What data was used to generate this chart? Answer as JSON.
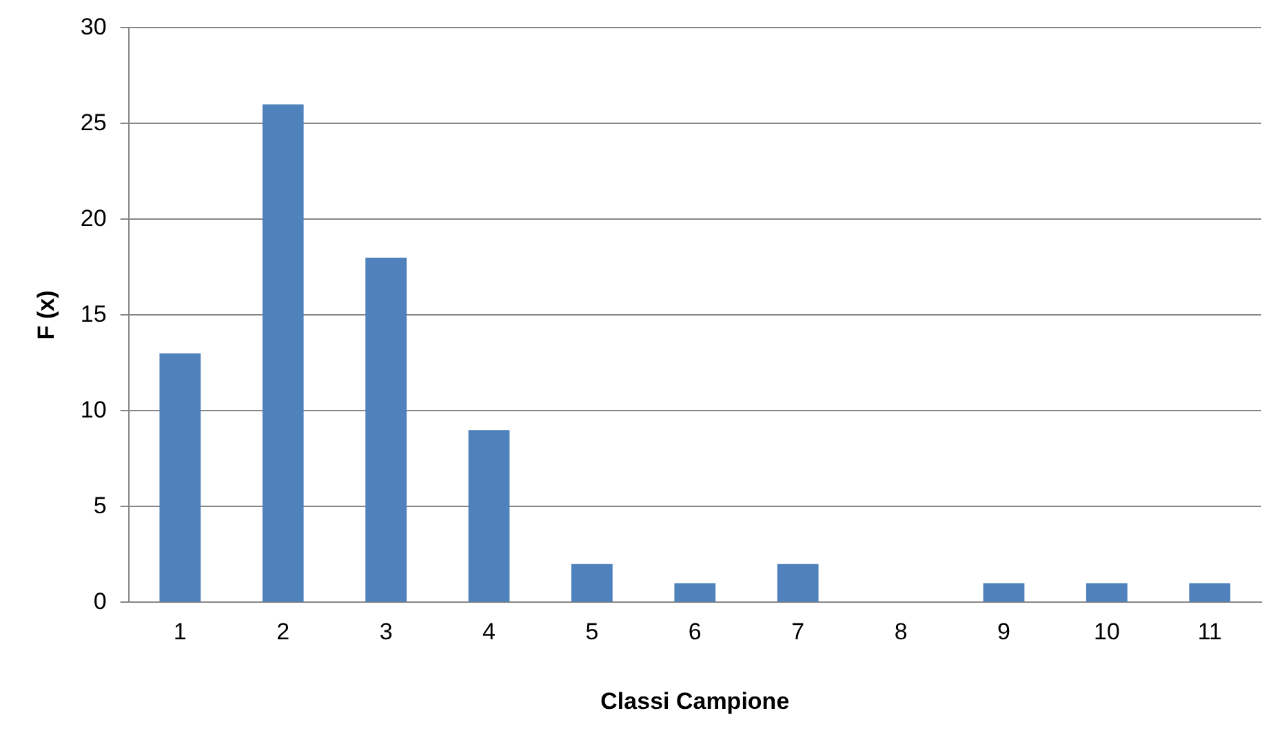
{
  "chart_data": {
    "type": "bar",
    "xlabel": "Classi Campione",
    "ylabel": "F (x)",
    "categories": [
      "1",
      "2",
      "3",
      "4",
      "5",
      "6",
      "7",
      "8",
      "9",
      "10",
      "11"
    ],
    "values": [
      13,
      26,
      18,
      9,
      2,
      1,
      2,
      0,
      1,
      1,
      1
    ],
    "color": "#4f81bd",
    "ylim": [
      0,
      30
    ],
    "yticks": [
      0,
      5,
      10,
      15,
      20,
      25,
      30
    ],
    "grid": "y",
    "legend": false
  }
}
